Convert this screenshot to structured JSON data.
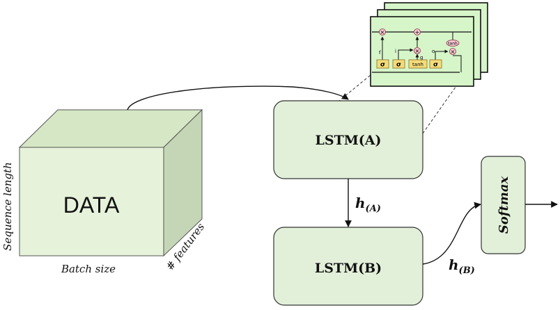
{
  "data_cube": {
    "label": "DATA",
    "axis_vertical": "Sequence length",
    "axis_bottom": "Batch size",
    "axis_depth": "# features"
  },
  "lstm_a": {
    "label": "LSTM(A)"
  },
  "lstm_b": {
    "label": "LSTM(B)"
  },
  "softmax": {
    "label": "Softmax"
  },
  "hidden_a": {
    "main": "h",
    "sub": "(A)"
  },
  "hidden_b": {
    "main": "h",
    "sub": "(B)"
  },
  "lstm_cell": {
    "gate_labels": [
      "f",
      "i",
      "g",
      "o"
    ],
    "op_symbols": [
      "×",
      "+",
      "×",
      "×"
    ],
    "activations": [
      "σ",
      "σ",
      "tanh",
      "σ"
    ],
    "output_activation": "tanh"
  },
  "colors": {
    "box_fill": "#e3f0d9",
    "cube_front": "#e6f2da",
    "cube_top": "#d5e7c5",
    "cube_side": "#c4d6b6",
    "cell_fill": "#d6f5c9",
    "gate_fill": "#f4dc7a",
    "op_fill": "#f5c8d2"
  }
}
